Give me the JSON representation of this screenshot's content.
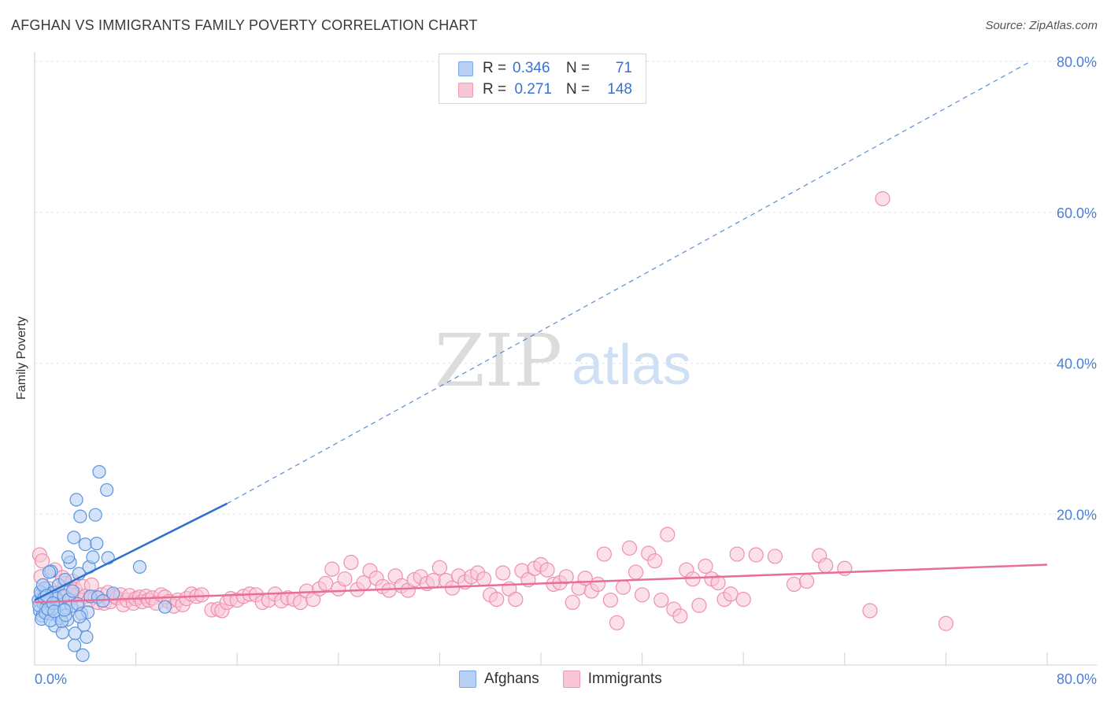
{
  "title": "AFGHAN VS IMMIGRANTS FAMILY POVERTY CORRELATION CHART",
  "source": "Source: ZipAtlas.com",
  "watermark": {
    "zip": "ZIP",
    "atlas": "atlas"
  },
  "colors": {
    "blue": "#5b93e0",
    "blue_fill": "#b7d0f3",
    "blue_line": "#2f6fd0",
    "pink": "#ee8fb0",
    "pink_fill": "#f9c6d6",
    "pink_line": "#e96d98",
    "axis_text": "#4a7fd4",
    "grid": "#e4e4e4"
  },
  "legend_top": {
    "rows": [
      {
        "r_label": "R =",
        "r_value": "0.346",
        "n_label": "N =",
        "n_value": "71"
      },
      {
        "r_label": "R =",
        "r_value": "0.271",
        "n_label": "N =",
        "n_value": "148"
      }
    ]
  },
  "legend_bottom": [
    "Afghans",
    "Immigrants"
  ],
  "chart_data": {
    "type": "scatter",
    "title": "AFGHAN VS IMMIGRANTS FAMILY POVERTY CORRELATION CHART",
    "xlabel": "",
    "ylabel": "Family Poverty",
    "xlim": [
      0,
      80
    ],
    "ylim": [
      0,
      80
    ],
    "x_tick_labels": [
      "0.0%",
      "80.0%"
    ],
    "y_ticks": [
      20,
      40,
      60,
      80
    ],
    "y_tick_labels": [
      "20.0%",
      "40.0%",
      "60.0%",
      "80.0%"
    ],
    "grid": true,
    "series": [
      {
        "name": "Afghans",
        "r": 0.346,
        "n": 71,
        "trend": {
          "x0": 0,
          "y0": 8.6,
          "x1": 15.2,
          "y1": 21.4,
          "dashed_to": [
            78.7,
            80
          ]
        },
        "points": [
          [
            0.3,
            8.6
          ],
          [
            0.4,
            7.2
          ],
          [
            0.5,
            9.4
          ],
          [
            0.6,
            6.5
          ],
          [
            0.7,
            8.1
          ],
          [
            0.8,
            10.2
          ],
          [
            0.9,
            7.6
          ],
          [
            1.0,
            9.0
          ],
          [
            1.1,
            6.8
          ],
          [
            1.2,
            8.4
          ],
          [
            1.3,
            12.4
          ],
          [
            1.4,
            7.3
          ],
          [
            1.5,
            9.6
          ],
          [
            1.6,
            5.2
          ],
          [
            1.7,
            8.8
          ],
          [
            1.8,
            7.0
          ],
          [
            1.9,
            10.6
          ],
          [
            2.0,
            6.2
          ],
          [
            2.1,
            8.0
          ],
          [
            2.2,
            4.3
          ],
          [
            2.3,
            9.2
          ],
          [
            2.4,
            11.3
          ],
          [
            2.5,
            7.5
          ],
          [
            2.6,
            6.0
          ],
          [
            2.7,
            8.7
          ],
          [
            2.8,
            13.6
          ],
          [
            2.9,
            7.8
          ],
          [
            3.0,
            9.8
          ],
          [
            3.1,
            16.9
          ],
          [
            3.2,
            4.2
          ],
          [
            3.3,
            21.9
          ],
          [
            3.4,
            8.1
          ],
          [
            3.5,
            12.1
          ],
          [
            3.6,
            19.7
          ],
          [
            3.7,
            6.8
          ],
          [
            3.8,
            1.3
          ],
          [
            3.9,
            5.3
          ],
          [
            4.0,
            16.0
          ],
          [
            4.1,
            3.7
          ],
          [
            4.2,
            7.0
          ],
          [
            4.3,
            13.0
          ],
          [
            4.4,
            9.1
          ],
          [
            4.6,
            14.3
          ],
          [
            4.8,
            19.9
          ],
          [
            4.9,
            16.1
          ],
          [
            5.0,
            9.0
          ],
          [
            5.1,
            25.6
          ],
          [
            5.4,
            8.5
          ],
          [
            5.7,
            23.2
          ],
          [
            5.8,
            14.2
          ],
          [
            6.2,
            9.5
          ],
          [
            0.35,
            7.9
          ],
          [
            0.45,
            9.7
          ],
          [
            0.55,
            6.1
          ],
          [
            0.65,
            10.6
          ],
          [
            0.75,
            8.9
          ],
          [
            0.85,
            6.9
          ],
          [
            0.95,
            9.2
          ],
          [
            1.05,
            7.4
          ],
          [
            1.15,
            12.3
          ],
          [
            1.25,
            5.9
          ],
          [
            1.45,
            8.2
          ],
          [
            1.55,
            7.1
          ],
          [
            2.15,
            5.8
          ],
          [
            2.45,
            6.6
          ],
          [
            2.65,
            14.3
          ],
          [
            3.15,
            2.6
          ],
          [
            3.55,
            6.4
          ],
          [
            2.35,
            7.3
          ],
          [
            8.3,
            13.0
          ],
          [
            10.3,
            7.7
          ]
        ]
      },
      {
        "name": "Immigrants",
        "r": 0.271,
        "n": 148,
        "trend": {
          "x0": 0,
          "y0": 8.3,
          "x1": 80,
          "y1": 13.3
        },
        "points": [
          [
            0.4,
            14.6
          ],
          [
            0.5,
            11.7
          ],
          [
            0.6,
            13.8
          ],
          [
            0.8,
            9.4
          ],
          [
            1.0,
            8.4
          ],
          [
            1.2,
            10.1
          ],
          [
            1.4,
            7.9
          ],
          [
            1.6,
            12.6
          ],
          [
            1.8,
            9.6
          ],
          [
            2.0,
            8.9
          ],
          [
            2.2,
            11.6
          ],
          [
            2.4,
            10.8
          ],
          [
            2.6,
            9.9
          ],
          [
            2.8,
            8.5
          ],
          [
            3.0,
            11.1
          ],
          [
            3.2,
            10.0
          ],
          [
            3.4,
            9.3
          ],
          [
            3.6,
            8.7
          ],
          [
            3.8,
            10.4
          ],
          [
            4.0,
            9.1
          ],
          [
            4.3,
            8.6
          ],
          [
            4.5,
            10.6
          ],
          [
            4.8,
            9.0
          ],
          [
            5.0,
            8.3
          ],
          [
            5.3,
            9.3
          ],
          [
            5.5,
            8.2
          ],
          [
            5.8,
            9.6
          ],
          [
            6.0,
            8.4
          ],
          [
            6.3,
            9.1
          ],
          [
            6.5,
            8.9
          ],
          [
            6.8,
            9.3
          ],
          [
            7.0,
            8.0
          ],
          [
            7.3,
            8.6
          ],
          [
            7.5,
            9.2
          ],
          [
            7.8,
            8.2
          ],
          [
            8.0,
            8.8
          ],
          [
            8.3,
            9.0
          ],
          [
            8.5,
            8.4
          ],
          [
            8.8,
            9.1
          ],
          [
            9.0,
            8.6
          ],
          [
            9.3,
            8.9
          ],
          [
            9.6,
            8.2
          ],
          [
            10.0,
            9.3
          ],
          [
            10.3,
            9.0
          ],
          [
            10.6,
            8.4
          ],
          [
            11.0,
            7.8
          ],
          [
            11.3,
            8.6
          ],
          [
            11.7,
            8.0
          ],
          [
            12.0,
            8.8
          ],
          [
            12.4,
            9.4
          ],
          [
            12.8,
            9.1
          ],
          [
            13.2,
            9.3
          ],
          [
            14.0,
            7.3
          ],
          [
            14.5,
            7.4
          ],
          [
            14.8,
            7.2
          ],
          [
            15.2,
            8.3
          ],
          [
            15.5,
            8.8
          ],
          [
            16.0,
            8.6
          ],
          [
            16.5,
            9.1
          ],
          [
            17.0,
            9.4
          ],
          [
            17.5,
            9.3
          ],
          [
            18.0,
            8.3
          ],
          [
            18.5,
            8.6
          ],
          [
            19.0,
            9.4
          ],
          [
            19.5,
            8.5
          ],
          [
            20.0,
            8.9
          ],
          [
            20.5,
            8.7
          ],
          [
            21.0,
            8.3
          ],
          [
            21.5,
            9.8
          ],
          [
            22.0,
            8.7
          ],
          [
            22.5,
            10.1
          ],
          [
            23.0,
            10.8
          ],
          [
            23.5,
            12.7
          ],
          [
            24.0,
            10.1
          ],
          [
            24.5,
            11.4
          ],
          [
            25.0,
            13.6
          ],
          [
            25.5,
            10.0
          ],
          [
            26.0,
            10.9
          ],
          [
            26.5,
            12.5
          ],
          [
            27.0,
            11.5
          ],
          [
            27.5,
            10.4
          ],
          [
            28.0,
            9.9
          ],
          [
            28.5,
            11.8
          ],
          [
            29.0,
            10.5
          ],
          [
            29.5,
            9.9
          ],
          [
            30.0,
            11.3
          ],
          [
            30.5,
            11.7
          ],
          [
            31.0,
            10.8
          ],
          [
            31.5,
            11.2
          ],
          [
            32.0,
            12.9
          ],
          [
            32.5,
            11.2
          ],
          [
            33.0,
            10.2
          ],
          [
            33.5,
            11.8
          ],
          [
            34.0,
            11.0
          ],
          [
            34.5,
            11.7
          ],
          [
            35.0,
            12.2
          ],
          [
            35.5,
            11.4
          ],
          [
            36.0,
            9.3
          ],
          [
            36.5,
            8.7
          ],
          [
            37.0,
            12.2
          ],
          [
            37.5,
            10.1
          ],
          [
            38.0,
            8.7
          ],
          [
            38.5,
            12.5
          ],
          [
            39.0,
            11.3
          ],
          [
            39.5,
            12.8
          ],
          [
            40.0,
            13.3
          ],
          [
            40.5,
            12.6
          ],
          [
            41.0,
            10.7
          ],
          [
            41.5,
            10.9
          ],
          [
            42.0,
            11.7
          ],
          [
            42.5,
            8.3
          ],
          [
            43.0,
            10.2
          ],
          [
            43.5,
            11.5
          ],
          [
            44.0,
            9.8
          ],
          [
            44.5,
            10.7
          ],
          [
            45.0,
            14.7
          ],
          [
            45.5,
            8.6
          ],
          [
            46.0,
            5.6
          ],
          [
            46.5,
            10.3
          ],
          [
            47.0,
            15.5
          ],
          [
            47.5,
            12.3
          ],
          [
            48.0,
            9.3
          ],
          [
            48.5,
            14.8
          ],
          [
            49.0,
            13.8
          ],
          [
            49.5,
            8.6
          ],
          [
            50.0,
            17.3
          ],
          [
            50.5,
            7.4
          ],
          [
            51.0,
            6.5
          ],
          [
            51.5,
            12.6
          ],
          [
            52.0,
            11.4
          ],
          [
            52.5,
            7.9
          ],
          [
            53.0,
            13.1
          ],
          [
            53.5,
            11.4
          ],
          [
            54.0,
            10.9
          ],
          [
            54.5,
            8.7
          ],
          [
            55.0,
            9.4
          ],
          [
            55.5,
            14.7
          ],
          [
            56.0,
            8.7
          ],
          [
            57.0,
            14.6
          ],
          [
            58.5,
            14.4
          ],
          [
            60.0,
            10.7
          ],
          [
            61.0,
            11.1
          ],
          [
            62.0,
            14.5
          ],
          [
            62.5,
            13.2
          ],
          [
            64.0,
            12.8
          ],
          [
            66.0,
            7.2
          ],
          [
            67.0,
            61.8
          ],
          [
            72.0,
            5.5
          ]
        ]
      }
    ]
  }
}
